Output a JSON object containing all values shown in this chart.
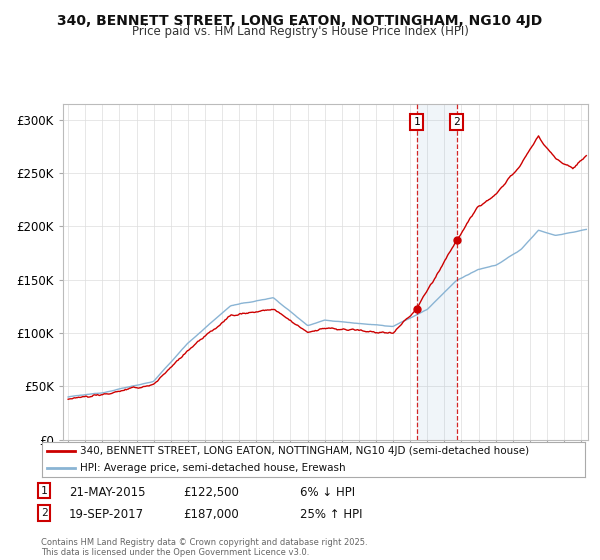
{
  "title1": "340, BENNETT STREET, LONG EATON, NOTTINGHAM, NG10 4JD",
  "title2": "Price paid vs. HM Land Registry's House Price Index (HPI)",
  "ylabel_ticks": [
    "£0",
    "£50K",
    "£100K",
    "£150K",
    "£200K",
    "£250K",
    "£300K"
  ],
  "ytick_values": [
    0,
    50000,
    100000,
    150000,
    200000,
    250000,
    300000
  ],
  "ylim": [
    0,
    315000
  ],
  "xlim_start": 1994.7,
  "xlim_end": 2025.4,
  "sale1_date": 2015.385,
  "sale1_price": 122500,
  "sale2_date": 2017.72,
  "sale2_price": 187000,
  "hpi_color": "#8ab4d4",
  "price_color": "#cc0000",
  "background_color": "#ffffff",
  "plot_bg": "#ffffff",
  "legend_line1": "340, BENNETT STREET, LONG EATON, NOTTINGHAM, NG10 4JD (semi-detached house)",
  "legend_line2": "HPI: Average price, semi-detached house, Erewash",
  "footer": "Contains HM Land Registry data © Crown copyright and database right 2025.\nThis data is licensed under the Open Government Licence v3.0.",
  "grid_color": "#dddddd",
  "sale1_text_date": "21-MAY-2015",
  "sale1_text_price": "£122,500",
  "sale1_text_pct": "6% ↓ HPI",
  "sale2_text_date": "19-SEP-2017",
  "sale2_text_price": "£187,000",
  "sale2_text_pct": "25% ↑ HPI"
}
